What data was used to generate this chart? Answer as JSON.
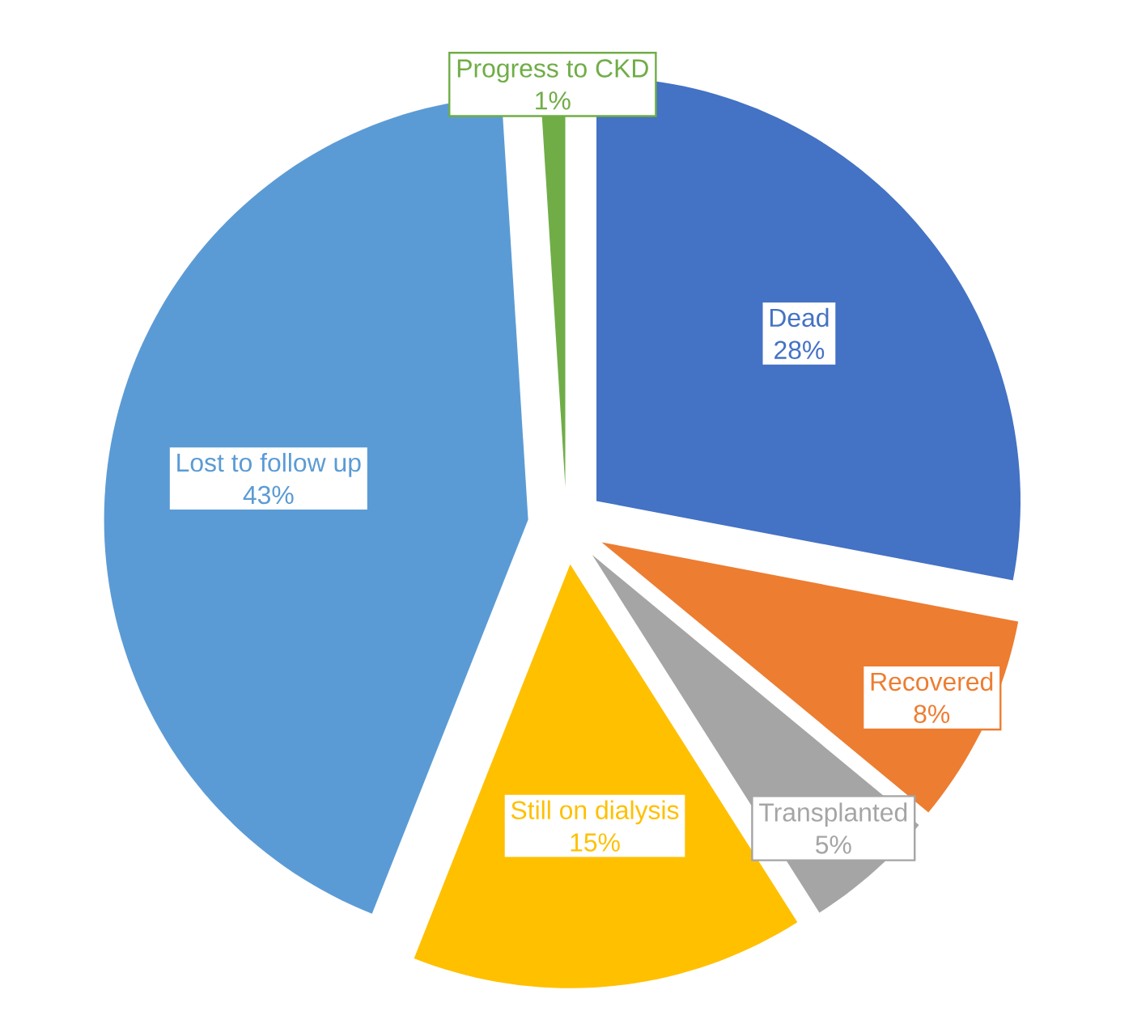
{
  "chart_data": {
    "type": "pie",
    "categories": [
      "Dead",
      "Recovered",
      "Transplanted",
      "Still on dialysis",
      "Lost to follow up",
      "Progress to CKD"
    ],
    "values": [
      28,
      8,
      5,
      15,
      43,
      1
    ],
    "colors": [
      "#4472c4",
      "#ed7d31",
      "#a5a5a5",
      "#ffc000",
      "#5b9bd5",
      "#70ad47"
    ],
    "value_labels": [
      "28%",
      "8%",
      "5%",
      "15%",
      "43%",
      "1%"
    ]
  }
}
